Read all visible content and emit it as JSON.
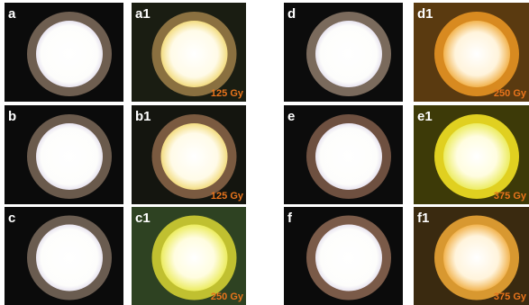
{
  "panels": [
    {
      "label": "a"
    },
    {
      "label": "a1",
      "dose": "125 Gy"
    },
    {
      "label": "d"
    },
    {
      "label": "d1",
      "dose": "250 Gy"
    },
    {
      "label": "b"
    },
    {
      "label": "b1",
      "dose": "125 Gy"
    },
    {
      "label": "e"
    },
    {
      "label": "e1",
      "dose": "375 Gy"
    },
    {
      "label": "c"
    },
    {
      "label": "c1",
      "dose": "250 Gy"
    },
    {
      "label": "f"
    },
    {
      "label": "f1",
      "dose": "375 Gy"
    }
  ]
}
